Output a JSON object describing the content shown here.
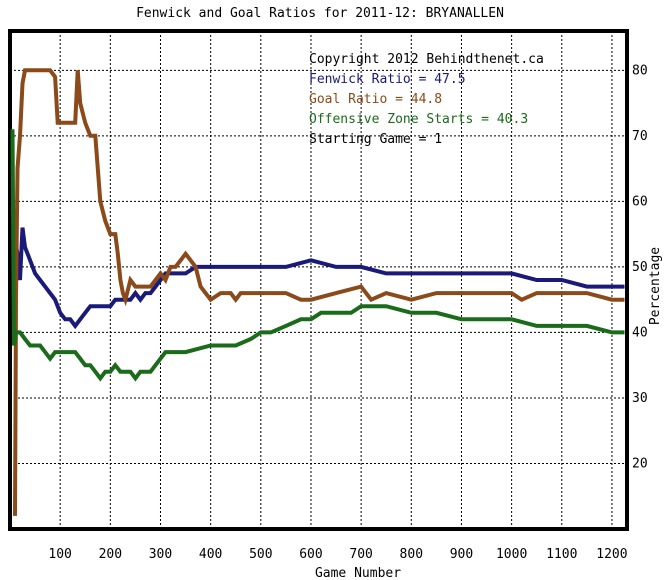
{
  "chart_data": {
    "type": "line",
    "title": "Fenwick and Goal Ratios for 2011-12: BRYANALLEN",
    "xlabel": "Game Number",
    "ylabel": "Percentage",
    "xlim": [
      0,
      1230
    ],
    "ylim": [
      10,
      86
    ],
    "grid": true,
    "xticks": [
      100,
      200,
      300,
      400,
      500,
      600,
      700,
      800,
      900,
      1000,
      1100,
      1200
    ],
    "yticks": [
      20,
      30,
      40,
      50,
      60,
      70,
      80
    ],
    "annotations": [
      {
        "text": "Copyright 2012 Behindthenet.ca",
        "color": "#000000"
      },
      {
        "text": "Fenwick Ratio = 47.5",
        "color": "#1a1a7a"
      },
      {
        "text": "Goal Ratio = 44.8",
        "color": "#8b4a1a"
      },
      {
        "text": "Offensive Zone Starts = 40.3",
        "color": "#1a6b1a"
      },
      {
        "text": "Starting Game = 1",
        "color": "#000000"
      }
    ],
    "series": [
      {
        "color": "#1a1a7a",
        "points": [
          [
            5,
            59
          ],
          [
            10,
            54
          ],
          [
            15,
            52
          ],
          [
            20,
            48
          ],
          [
            25,
            56
          ],
          [
            30,
            53
          ],
          [
            35,
            52
          ],
          [
            40,
            51
          ],
          [
            45,
            50
          ],
          [
            50,
            49
          ],
          [
            60,
            48
          ],
          [
            70,
            47
          ],
          [
            80,
            46
          ],
          [
            90,
            45
          ],
          [
            100,
            43
          ],
          [
            110,
            42
          ],
          [
            120,
            42
          ],
          [
            130,
            41
          ],
          [
            140,
            42
          ],
          [
            150,
            43
          ],
          [
            160,
            44
          ],
          [
            170,
            44
          ],
          [
            180,
            44
          ],
          [
            190,
            44
          ],
          [
            200,
            44
          ],
          [
            210,
            45
          ],
          [
            220,
            45
          ],
          [
            230,
            45
          ],
          [
            240,
            45
          ],
          [
            250,
            46
          ],
          [
            260,
            45
          ],
          [
            270,
            46
          ],
          [
            280,
            46
          ],
          [
            290,
            47
          ],
          [
            300,
            48
          ],
          [
            310,
            49
          ],
          [
            320,
            49
          ],
          [
            330,
            49
          ],
          [
            350,
            49
          ],
          [
            370,
            50
          ],
          [
            400,
            50
          ],
          [
            450,
            50
          ],
          [
            500,
            50
          ],
          [
            550,
            50
          ],
          [
            600,
            51
          ],
          [
            650,
            50
          ],
          [
            700,
            50
          ],
          [
            750,
            49
          ],
          [
            800,
            49
          ],
          [
            850,
            49
          ],
          [
            900,
            49
          ],
          [
            950,
            49
          ],
          [
            1000,
            49
          ],
          [
            1050,
            48
          ],
          [
            1100,
            48
          ],
          [
            1150,
            47
          ],
          [
            1200,
            47
          ],
          [
            1225,
            47
          ]
        ]
      },
      {
        "color": "#8b4a1a",
        "points": [
          [
            10,
            12
          ],
          [
            12,
            45
          ],
          [
            15,
            65
          ],
          [
            20,
            70
          ],
          [
            25,
            78
          ],
          [
            30,
            80
          ],
          [
            40,
            80
          ],
          [
            50,
            80
          ],
          [
            60,
            80
          ],
          [
            70,
            80
          ],
          [
            80,
            80
          ],
          [
            90,
            79
          ],
          [
            95,
            72
          ],
          [
            100,
            72
          ],
          [
            110,
            72
          ],
          [
            120,
            72
          ],
          [
            130,
            72
          ],
          [
            135,
            80
          ],
          [
            140,
            75
          ],
          [
            150,
            72
          ],
          [
            160,
            70
          ],
          [
            170,
            70
          ],
          [
            180,
            60
          ],
          [
            190,
            57
          ],
          [
            200,
            55
          ],
          [
            210,
            55
          ],
          [
            215,
            52
          ],
          [
            220,
            48
          ],
          [
            225,
            46
          ],
          [
            230,
            45
          ],
          [
            240,
            48
          ],
          [
            250,
            47
          ],
          [
            260,
            47
          ],
          [
            270,
            47
          ],
          [
            280,
            47
          ],
          [
            290,
            48
          ],
          [
            300,
            49
          ],
          [
            310,
            48
          ],
          [
            320,
            50
          ],
          [
            330,
            50
          ],
          [
            340,
            51
          ],
          [
            350,
            52
          ],
          [
            360,
            51
          ],
          [
            370,
            50
          ],
          [
            380,
            47
          ],
          [
            390,
            46
          ],
          [
            400,
            45
          ],
          [
            420,
            46
          ],
          [
            440,
            46
          ],
          [
            450,
            45
          ],
          [
            460,
            46
          ],
          [
            500,
            46
          ],
          [
            550,
            46
          ],
          [
            580,
            45
          ],
          [
            600,
            45
          ],
          [
            650,
            46
          ],
          [
            700,
            47
          ],
          [
            720,
            45
          ],
          [
            750,
            46
          ],
          [
            800,
            45
          ],
          [
            850,
            46
          ],
          [
            900,
            46
          ],
          [
            950,
            46
          ],
          [
            1000,
            46
          ],
          [
            1020,
            45
          ],
          [
            1050,
            46
          ],
          [
            1100,
            46
          ],
          [
            1150,
            46
          ],
          [
            1200,
            45
          ],
          [
            1225,
            45
          ]
        ]
      },
      {
        "color": "#1a6b1a",
        "points": [
          [
            5,
            71
          ],
          [
            8,
            38
          ],
          [
            12,
            40
          ],
          [
            20,
            40
          ],
          [
            30,
            39
          ],
          [
            40,
            38
          ],
          [
            50,
            38
          ],
          [
            60,
            38
          ],
          [
            70,
            37
          ],
          [
            80,
            36
          ],
          [
            90,
            37
          ],
          [
            100,
            37
          ],
          [
            110,
            37
          ],
          [
            120,
            37
          ],
          [
            130,
            37
          ],
          [
            140,
            36
          ],
          [
            150,
            35
          ],
          [
            160,
            35
          ],
          [
            170,
            34
          ],
          [
            180,
            33
          ],
          [
            190,
            34
          ],
          [
            200,
            34
          ],
          [
            210,
            35
          ],
          [
            220,
            34
          ],
          [
            230,
            34
          ],
          [
            240,
            34
          ],
          [
            250,
            33
          ],
          [
            260,
            34
          ],
          [
            270,
            34
          ],
          [
            280,
            34
          ],
          [
            290,
            35
          ],
          [
            300,
            36
          ],
          [
            310,
            37
          ],
          [
            350,
            37
          ],
          [
            400,
            38
          ],
          [
            450,
            38
          ],
          [
            480,
            39
          ],
          [
            500,
            40
          ],
          [
            520,
            40
          ],
          [
            550,
            41
          ],
          [
            580,
            42
          ],
          [
            600,
            42
          ],
          [
            620,
            43
          ],
          [
            650,
            43
          ],
          [
            680,
            43
          ],
          [
            700,
            44
          ],
          [
            750,
            44
          ],
          [
            800,
            43
          ],
          [
            850,
            43
          ],
          [
            900,
            42
          ],
          [
            950,
            42
          ],
          [
            1000,
            42
          ],
          [
            1050,
            41
          ],
          [
            1100,
            41
          ],
          [
            1150,
            41
          ],
          [
            1200,
            40
          ],
          [
            1225,
            40
          ]
        ]
      }
    ]
  }
}
